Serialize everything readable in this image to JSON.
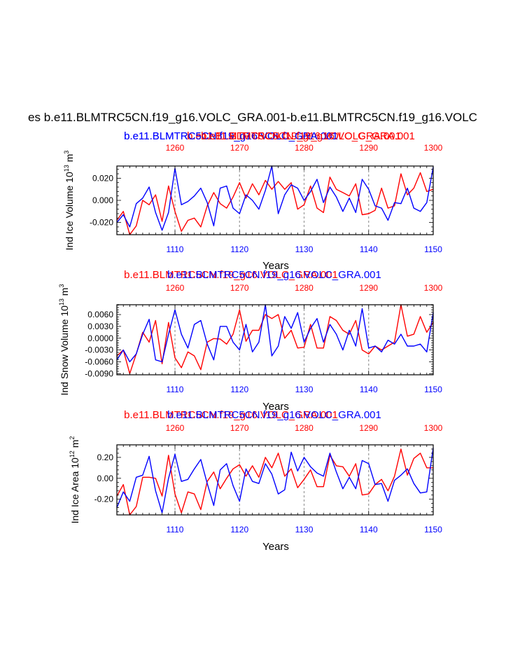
{
  "main_title": "es b.e11.BLMTRC5CN.f19_g16.VOLC_GRA.001-b.e11.BLMTRC5CN.f19_g16.VOLC",
  "colors": {
    "series_a": "#ff0000",
    "series_b": "#0000ff",
    "axis": "#000000",
    "grid": "#999999"
  },
  "chart_data": [
    {
      "type": "line",
      "top_labels": [
        {
          "text": "b.e11.BLMTRC5CN.f19_g16.VOLC_GRA.001",
          "color": "#0000ff"
        },
        {
          "text": "b.e11.BLMTRC5CN.f19_g16.VOLC_GRA.001",
          "color": "#ff0000"
        },
        {
          "text": "b.e11.BLMTRC5CN.f19_g16.VOLC_GRA.001",
          "color": "#0000ff"
        },
        {
          "text": "b.e11.BLMTRC5CN.f19_g16.VOLC_GRA.001",
          "color": "#ff0000"
        }
      ],
      "ylabel": "Ind Ice Volume 10",
      "ylabel_exp": "13",
      "ylabel_unit": " m",
      "ylabel_unit_exp": "3",
      "xlabel": "Years",
      "xlim_bottom": [
        1101,
        1150
      ],
      "xlim_top": [
        1251,
        1300
      ],
      "ylim": [
        -0.031,
        0.031
      ],
      "yticks": [
        -0.02,
        0.0,
        0.02
      ],
      "ytick_labels": [
        "-0.020",
        "0.000",
        "0.020"
      ],
      "xticks_bottom": [
        1110,
        1120,
        1130,
        1140,
        1150
      ],
      "xtick_labels_bottom": [
        "1110",
        "1120",
        "1130",
        "1140",
        "1150"
      ],
      "xticks_top": [
        1260,
        1270,
        1280,
        1290,
        1300
      ],
      "xtick_labels_top": [
        "1260",
        "1270",
        "1280",
        "1290",
        "1300"
      ],
      "gridlines_x": [
        1260,
        1270,
        1280,
        1290
      ],
      "series": [
        {
          "name": "b.e11.BLMTRC5CN.f19_g16.VOLC_GRA.001 (red)",
          "axis": "top",
          "color": "#ff0000",
          "x": [
            1251,
            1252,
            1253,
            1254,
            1255,
            1256,
            1257,
            1258,
            1259,
            1260,
            1261,
            1262,
            1263,
            1264,
            1265,
            1266,
            1267,
            1268,
            1269,
            1270,
            1271,
            1272,
            1273,
            1274,
            1275,
            1276,
            1277,
            1278,
            1279,
            1280,
            1281,
            1282,
            1283,
            1284,
            1285,
            1286,
            1287,
            1288,
            1289,
            1290,
            1291,
            1292,
            1293,
            1294,
            1295,
            1296,
            1297,
            1298,
            1299,
            1300
          ],
          "values": [
            -0.018,
            -0.01,
            -0.031,
            -0.023,
            0.0,
            -0.004,
            0.005,
            -0.019,
            0.013,
            -0.01,
            -0.028,
            -0.018,
            -0.016,
            -0.024,
            -0.005,
            0.007,
            -0.003,
            -0.007,
            0.003,
            0.016,
            0.002,
            0.015,
            0.005,
            0.018,
            0.01,
            0.017,
            0.01,
            0.016,
            -0.008,
            -0.004,
            0.013,
            -0.007,
            -0.011,
            0.021,
            0.01,
            0.007,
            0.004,
            0.015,
            -0.013,
            -0.012,
            -0.009,
            0.011,
            -0.007,
            -0.005,
            0.024,
            0.005,
            0.011,
            0.025,
            0.008,
            0.01
          ]
        },
        {
          "name": "b.e11.BLMTRC5CN.f19_g16.VOLC_GRA.001 (blue)",
          "axis": "bottom",
          "color": "#0000ff",
          "x": [
            1101,
            1102,
            1103,
            1104,
            1105,
            1106,
            1107,
            1108,
            1109,
            1110,
            1111,
            1112,
            1113,
            1114,
            1115,
            1116,
            1117,
            1118,
            1119,
            1120,
            1121,
            1122,
            1123,
            1124,
            1125,
            1126,
            1127,
            1128,
            1129,
            1130,
            1131,
            1132,
            1133,
            1134,
            1135,
            1136,
            1137,
            1138,
            1139,
            1140,
            1141,
            1142,
            1143,
            1144,
            1145,
            1146,
            1147,
            1148,
            1149,
            1150
          ],
          "values": [
            -0.02,
            -0.013,
            -0.024,
            -0.003,
            0.002,
            0.012,
            -0.011,
            -0.027,
            -0.011,
            0.029,
            -0.004,
            -0.001,
            0.004,
            0.011,
            -0.002,
            -0.023,
            0.011,
            0.013,
            -0.007,
            -0.012,
            0.005,
            0.0,
            -0.008,
            0.009,
            0.031,
            -0.012,
            0.005,
            0.014,
            0.011,
            0.0,
            0.008,
            0.019,
            -0.002,
            0.012,
            0.003,
            -0.01,
            0.002,
            -0.011,
            0.019,
            0.01,
            -0.005,
            -0.007,
            -0.018,
            -0.002,
            -0.003,
            0.011,
            -0.007,
            -0.01,
            -0.002,
            0.03
          ]
        }
      ]
    },
    {
      "type": "line",
      "top_labels": [
        {
          "text": "b.e11.BLMTRC5CN.f19_g16.VOLC_GRA.001",
          "color": "#ff0000"
        },
        {
          "text": "b.e11.BLMTRC5CN.f19_g16.VOLC_GRA.001",
          "color": "#0000ff"
        }
      ],
      "ylabel": "Ind Snow Volume 10",
      "ylabel_exp": "13",
      "ylabel_unit": " m",
      "ylabel_unit_exp": "3",
      "xlabel": "Years",
      "xlim_bottom": [
        1101,
        1150
      ],
      "xlim_top": [
        1251,
        1300
      ],
      "ylim": [
        -0.0093,
        0.0085
      ],
      "yticks": [
        -0.009,
        -0.006,
        -0.003,
        0.0,
        0.003,
        0.006
      ],
      "ytick_labels": [
        "-0.0090",
        "-0.0060",
        "-0.0030",
        "0.0000",
        "0.0030",
        "0.0060"
      ],
      "xticks_bottom": [
        1110,
        1120,
        1130,
        1140,
        1150
      ],
      "xtick_labels_bottom": [
        "1110",
        "1120",
        "1130",
        "1140",
        "1150"
      ],
      "xticks_top": [
        1260,
        1270,
        1280,
        1290,
        1300
      ],
      "xtick_labels_top": [
        "1260",
        "1270",
        "1280",
        "1290",
        "1300"
      ],
      "gridlines_x": [
        1260,
        1270,
        1280,
        1290
      ],
      "series": [
        {
          "name": "b.e11.BLMTRC5CN.f19_g16.VOLC_GRA.001 (red)",
          "axis": "top",
          "color": "#ff0000",
          "x": [
            1251,
            1252,
            1253,
            1254,
            1255,
            1256,
            1257,
            1258,
            1259,
            1260,
            1261,
            1262,
            1263,
            1264,
            1265,
            1266,
            1267,
            1268,
            1269,
            1270,
            1271,
            1272,
            1273,
            1274,
            1275,
            1276,
            1277,
            1278,
            1279,
            1280,
            1281,
            1282,
            1283,
            1284,
            1285,
            1286,
            1287,
            1288,
            1289,
            1290,
            1291,
            1292,
            1293,
            1294,
            1295,
            1296,
            1297,
            1298,
            1299,
            1300
          ],
          "values": [
            -0.0045,
            -0.003,
            -0.009,
            -0.004,
            0.0015,
            -0.001,
            0.0045,
            -0.0065,
            0.004,
            -0.005,
            -0.0075,
            -0.0035,
            -0.0045,
            -0.008,
            -0.001,
            -0.0001,
            -0.0002,
            -0.0015,
            0.001,
            0.0072,
            -0.0008,
            0.002,
            0.002,
            0.006,
            0.005,
            0.006,
            0.0,
            0.002,
            -0.0025,
            -0.0023,
            0.0035,
            -0.0025,
            -0.0025,
            0.0055,
            0.0045,
            0.002,
            0.001,
            0.0045,
            -0.003,
            -0.004,
            -0.002,
            -0.003,
            -0.002,
            -0.001,
            0.0085,
            0.0005,
            0.001,
            0.0055,
            0.0015,
            0.004
          ]
        },
        {
          "name": "b.e11.BLMTRC5CN.f19_g16.VOLC_GRA.001 (blue)",
          "axis": "bottom",
          "color": "#0000ff",
          "x": [
            1101,
            1102,
            1103,
            1104,
            1105,
            1106,
            1107,
            1108,
            1109,
            1110,
            1111,
            1112,
            1113,
            1114,
            1115,
            1116,
            1117,
            1118,
            1119,
            1120,
            1121,
            1122,
            1123,
            1124,
            1125,
            1126,
            1127,
            1128,
            1129,
            1130,
            1131,
            1132,
            1133,
            1134,
            1135,
            1136,
            1137,
            1138,
            1139,
            1140,
            1141,
            1142,
            1143,
            1144,
            1145,
            1146,
            1147,
            1148,
            1149,
            1150
          ],
          "values": [
            -0.0055,
            -0.003,
            -0.006,
            -0.004,
            0.001,
            0.0048,
            -0.0055,
            -0.006,
            0.001,
            0.0072,
            0.001,
            -0.0025,
            0.0035,
            0.0045,
            -0.0015,
            -0.0055,
            0.003,
            0.003,
            -0.001,
            -0.003,
            0.0035,
            -0.0035,
            -0.001,
            0.0085,
            -0.0045,
            -0.002,
            0.0055,
            0.0025,
            0.0065,
            -0.001,
            0.0025,
            0.005,
            -0.001,
            0.0035,
            0.001,
            -0.003,
            0.002,
            -0.002,
            0.0075,
            -0.0025,
            -0.002,
            -0.0035,
            -0.0005,
            -0.0015,
            0.001,
            -0.002,
            -0.002,
            -0.0015,
            -0.0035,
            0.0065
          ]
        }
      ]
    },
    {
      "type": "line",
      "top_labels": [
        {
          "text": "b.e11.BLMTRC5CN.f19_g16.VOLC_GRA.001",
          "color": "#ff0000"
        },
        {
          "text": "b.e11.BLMTRC5CN.f19_g16.VOLC_GRA.001",
          "color": "#0000ff"
        }
      ],
      "ylabel": "Ind Ice Area 10",
      "ylabel_exp": "12",
      "ylabel_unit": " m",
      "ylabel_unit_exp": "2",
      "xlabel": "Years",
      "xlim_bottom": [
        1101,
        1150
      ],
      "xlim_top": [
        1251,
        1300
      ],
      "ylim": [
        -0.35,
        0.32
      ],
      "yticks": [
        -0.2,
        0.0,
        0.2
      ],
      "ytick_labels": [
        "-0.20",
        "0.00",
        "0.20"
      ],
      "xticks_bottom": [
        1110,
        1120,
        1130,
        1140,
        1150
      ],
      "xtick_labels_bottom": [
        "1110",
        "1120",
        "1130",
        "1140",
        "1150"
      ],
      "xticks_top": [
        1260,
        1270,
        1280,
        1290,
        1300
      ],
      "xtick_labels_top": [
        "1260",
        "1270",
        "1280",
        "1290",
        "1300"
      ],
      "gridlines_x": [
        1260,
        1270,
        1280,
        1290
      ],
      "series": [
        {
          "name": "b.e11.BLMTRC5CN.f19_g16.VOLC_GRA.001 (red)",
          "axis": "top",
          "color": "#ff0000",
          "x": [
            1251,
            1252,
            1253,
            1254,
            1255,
            1256,
            1257,
            1258,
            1259,
            1260,
            1261,
            1262,
            1263,
            1264,
            1265,
            1266,
            1267,
            1268,
            1269,
            1270,
            1271,
            1272,
            1273,
            1274,
            1275,
            1276,
            1277,
            1278,
            1279,
            1280,
            1281,
            1282,
            1283,
            1284,
            1285,
            1286,
            1287,
            1288,
            1289,
            1290,
            1291,
            1292,
            1293,
            1294,
            1295,
            1296,
            1297,
            1298,
            1299,
            1300
          ],
          "values": [
            -0.17,
            -0.06,
            -0.35,
            -0.27,
            0.01,
            0.01,
            0.0,
            -0.17,
            0.22,
            -0.15,
            -0.33,
            -0.13,
            -0.15,
            -0.3,
            -0.03,
            0.06,
            -0.1,
            0.0,
            0.09,
            0.13,
            0.02,
            0.12,
            0.01,
            0.2,
            0.1,
            0.24,
            0.02,
            0.09,
            -0.09,
            -0.01,
            0.08,
            -0.08,
            -0.08,
            0.22,
            0.12,
            0.11,
            0.02,
            0.14,
            -0.16,
            -0.15,
            -0.06,
            -0.01,
            -0.12,
            0.02,
            0.28,
            0.03,
            0.19,
            0.24,
            0.1,
            0.1
          ]
        },
        {
          "name": "b.e11.BLMTRC5CN.f19_g16.VOLC_GRA.001 (blue)",
          "axis": "bottom",
          "color": "#0000ff",
          "x": [
            1101,
            1102,
            1103,
            1104,
            1105,
            1106,
            1107,
            1108,
            1109,
            1110,
            1111,
            1112,
            1113,
            1114,
            1115,
            1116,
            1117,
            1118,
            1119,
            1120,
            1121,
            1122,
            1123,
            1124,
            1125,
            1126,
            1127,
            1128,
            1129,
            1130,
            1131,
            1132,
            1133,
            1134,
            1135,
            1136,
            1137,
            1138,
            1139,
            1140,
            1141,
            1142,
            1143,
            1144,
            1145,
            1146,
            1147,
            1148,
            1149,
            1150
          ],
          "values": [
            -0.28,
            -0.13,
            -0.22,
            0.01,
            0.03,
            0.21,
            -0.12,
            -0.33,
            0.0,
            0.23,
            -0.03,
            -0.01,
            0.09,
            0.18,
            -0.05,
            -0.26,
            0.08,
            0.14,
            -0.07,
            -0.22,
            0.09,
            -0.03,
            -0.05,
            0.14,
            0.04,
            -0.15,
            -0.11,
            0.25,
            0.07,
            0.2,
            0.11,
            0.05,
            0.02,
            0.24,
            0.06,
            -0.1,
            0.01,
            -0.1,
            0.17,
            0.14,
            -0.06,
            -0.05,
            -0.22,
            -0.02,
            0.03,
            0.09,
            -0.05,
            -0.14,
            -0.13,
            0.29
          ]
        }
      ]
    }
  ]
}
